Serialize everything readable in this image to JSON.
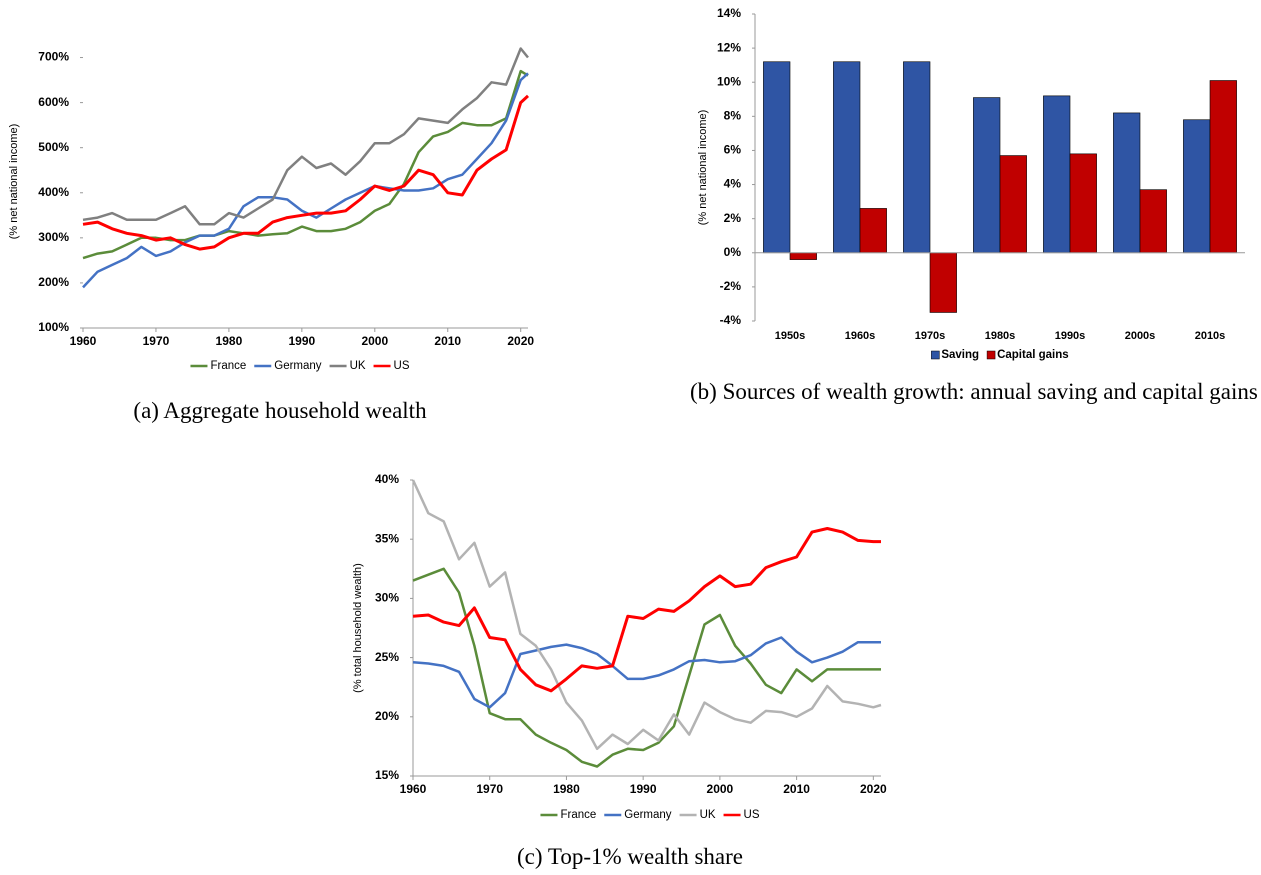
{
  "chart_data": [
    {
      "type": "line",
      "caption": "(a) Aggregate household wealth",
      "y_label": "(% net national income)",
      "x": [
        1960,
        1962,
        1964,
        1966,
        1968,
        1970,
        1972,
        1974,
        1976,
        1978,
        1980,
        1982,
        1984,
        1986,
        1988,
        1990,
        1992,
        1994,
        1996,
        1998,
        2000,
        2002,
        2004,
        2006,
        2008,
        2010,
        2012,
        2014,
        2016,
        2018,
        2020,
        2021
      ],
      "xlim": [
        1960,
        2021
      ],
      "xticks": [
        1960,
        1970,
        1980,
        1990,
        2000,
        2010,
        2020
      ],
      "ylim": [
        100,
        750
      ],
      "yticks": [
        {
          "value": 100,
          "label": "100%"
        },
        {
          "value": 200,
          "label": "200%"
        },
        {
          "value": 300,
          "label": "300%"
        },
        {
          "value": 400,
          "label": "400%"
        },
        {
          "value": 500,
          "label": "500%"
        },
        {
          "value": 600,
          "label": "600%"
        },
        {
          "value": 700,
          "label": "700%"
        }
      ],
      "legend": "bottom",
      "series": [
        {
          "name": "France",
          "color": "#5b8c3a",
          "values": [
            255,
            265,
            270,
            285,
            300,
            300,
            295,
            295,
            305,
            305,
            315,
            310,
            305,
            308,
            310,
            325,
            315,
            315,
            320,
            335,
            360,
            375,
            420,
            490,
            525,
            535,
            555,
            550,
            550,
            565,
            670,
            660
          ]
        },
        {
          "name": "Germany",
          "color": "#4472c4",
          "values": [
            190,
            225,
            240,
            255,
            280,
            260,
            270,
            290,
            305,
            305,
            320,
            370,
            390,
            390,
            385,
            360,
            345,
            365,
            385,
            400,
            415,
            410,
            405,
            405,
            410,
            430,
            440,
            475,
            510,
            560,
            650,
            665
          ]
        },
        {
          "name": "UK",
          "color": "#808080",
          "values": [
            340,
            345,
            355,
            340,
            340,
            340,
            355,
            370,
            330,
            330,
            355,
            345,
            365,
            385,
            450,
            480,
            455,
            465,
            440,
            470,
            510,
            510,
            530,
            565,
            560,
            555,
            585,
            610,
            645,
            640,
            720,
            700
          ]
        },
        {
          "name": "US",
          "color": "#ff0000",
          "values": [
            330,
            335,
            320,
            310,
            305,
            295,
            300,
            285,
            275,
            280,
            300,
            310,
            310,
            335,
            345,
            350,
            355,
            355,
            360,
            385,
            415,
            405,
            415,
            450,
            440,
            400,
            395,
            450,
            475,
            495,
            600,
            615
          ]
        }
      ]
    },
    {
      "type": "bar",
      "caption": "(b) Sources of wealth growth: annual saving and capital gains",
      "y_label": "(% net national income)",
      "categories": [
        "1950s",
        "1960s",
        "1970s",
        "1980s",
        "1990s",
        "2000s",
        "2010s"
      ],
      "ylim": [
        -4,
        14
      ],
      "yticks": [
        {
          "value": -4,
          "label": "-4%"
        },
        {
          "value": -2,
          "label": "-2%"
        },
        {
          "value": 0,
          "label": "0%"
        },
        {
          "value": 2,
          "label": "2%"
        },
        {
          "value": 4,
          "label": "4%"
        },
        {
          "value": 6,
          "label": "6%"
        },
        {
          "value": 8,
          "label": "8%"
        },
        {
          "value": 10,
          "label": "10%"
        },
        {
          "value": 12,
          "label": "12%"
        },
        {
          "value": 14,
          "label": "14%"
        }
      ],
      "legend": "bottom",
      "series": [
        {
          "name": "Saving",
          "color": "#2f55a4",
          "values": [
            11.2,
            11.2,
            11.2,
            9.1,
            9.2,
            8.2,
            7.8
          ]
        },
        {
          "name": "Capital gains",
          "color": "#c00000",
          "values": [
            -0.4,
            2.6,
            -3.5,
            5.7,
            5.8,
            3.7,
            10.1
          ]
        }
      ]
    },
    {
      "type": "line",
      "caption": "(c) Top-1% wealth share",
      "y_label": "(% total household wealth)",
      "x": [
        1960,
        1962,
        1964,
        1966,
        1968,
        1970,
        1972,
        1974,
        1976,
        1978,
        1980,
        1982,
        1984,
        1986,
        1988,
        1990,
        1992,
        1994,
        1996,
        1998,
        2000,
        2002,
        2004,
        2006,
        2008,
        2010,
        2012,
        2014,
        2016,
        2018,
        2020,
        2021
      ],
      "xlim": [
        1960,
        2021
      ],
      "xticks": [
        1960,
        1970,
        1980,
        1990,
        2000,
        2010,
        2020
      ],
      "ylim": [
        15,
        40
      ],
      "yticks": [
        {
          "value": 15,
          "label": "15%"
        },
        {
          "value": 20,
          "label": "20%"
        },
        {
          "value": 25,
          "label": "25%"
        },
        {
          "value": 30,
          "label": "30%"
        },
        {
          "value": 35,
          "label": "35%"
        },
        {
          "value": 40,
          "label": "40%"
        }
      ],
      "legend": "bottom",
      "series": [
        {
          "name": "France",
          "color": "#5b8c3a",
          "values": [
            31.5,
            32,
            32.5,
            30.5,
            26,
            20.3,
            19.8,
            19.8,
            18.5,
            17.8,
            17.2,
            16.2,
            15.8,
            16.8,
            17.3,
            17.2,
            17.8,
            19.2,
            23.5,
            27.8,
            28.6,
            26,
            24.5,
            22.7,
            22,
            24,
            23,
            24,
            24,
            24,
            24,
            24
          ]
        },
        {
          "name": "Germany",
          "color": "#4472c4",
          "values": [
            24.6,
            24.5,
            24.3,
            23.8,
            21.5,
            20.8,
            22,
            25.3,
            25.6,
            25.9,
            26.1,
            25.8,
            25.3,
            24.3,
            23.2,
            23.2,
            23.5,
            24,
            24.7,
            24.8,
            24.6,
            24.7,
            25.2,
            26.2,
            26.7,
            25.5,
            24.6,
            25,
            25.5,
            26.3,
            26.3,
            26.3
          ]
        },
        {
          "name": "UK",
          "color": "#b3b3b3",
          "values": [
            40,
            37.2,
            36.5,
            33.3,
            34.7,
            31,
            32.2,
            27,
            26,
            24,
            21.2,
            19.7,
            17.3,
            18.5,
            17.7,
            18.9,
            18,
            20.2,
            18.5,
            21.2,
            20.4,
            19.8,
            19.5,
            20.5,
            20.4,
            20,
            20.7,
            22.6,
            21.3,
            21.1,
            20.8,
            21
          ]
        },
        {
          "name": "US",
          "color": "#ff0000",
          "values": [
            28.5,
            28.6,
            28,
            27.7,
            29.2,
            26.7,
            26.5,
            24,
            22.7,
            22.2,
            23.2,
            24.3,
            24.1,
            24.3,
            28.5,
            28.3,
            29.1,
            28.9,
            29.8,
            31,
            31.9,
            31,
            31.2,
            32.6,
            33.1,
            33.5,
            35.6,
            35.9,
            35.6,
            34.9,
            34.8,
            34.8
          ]
        }
      ]
    }
  ]
}
